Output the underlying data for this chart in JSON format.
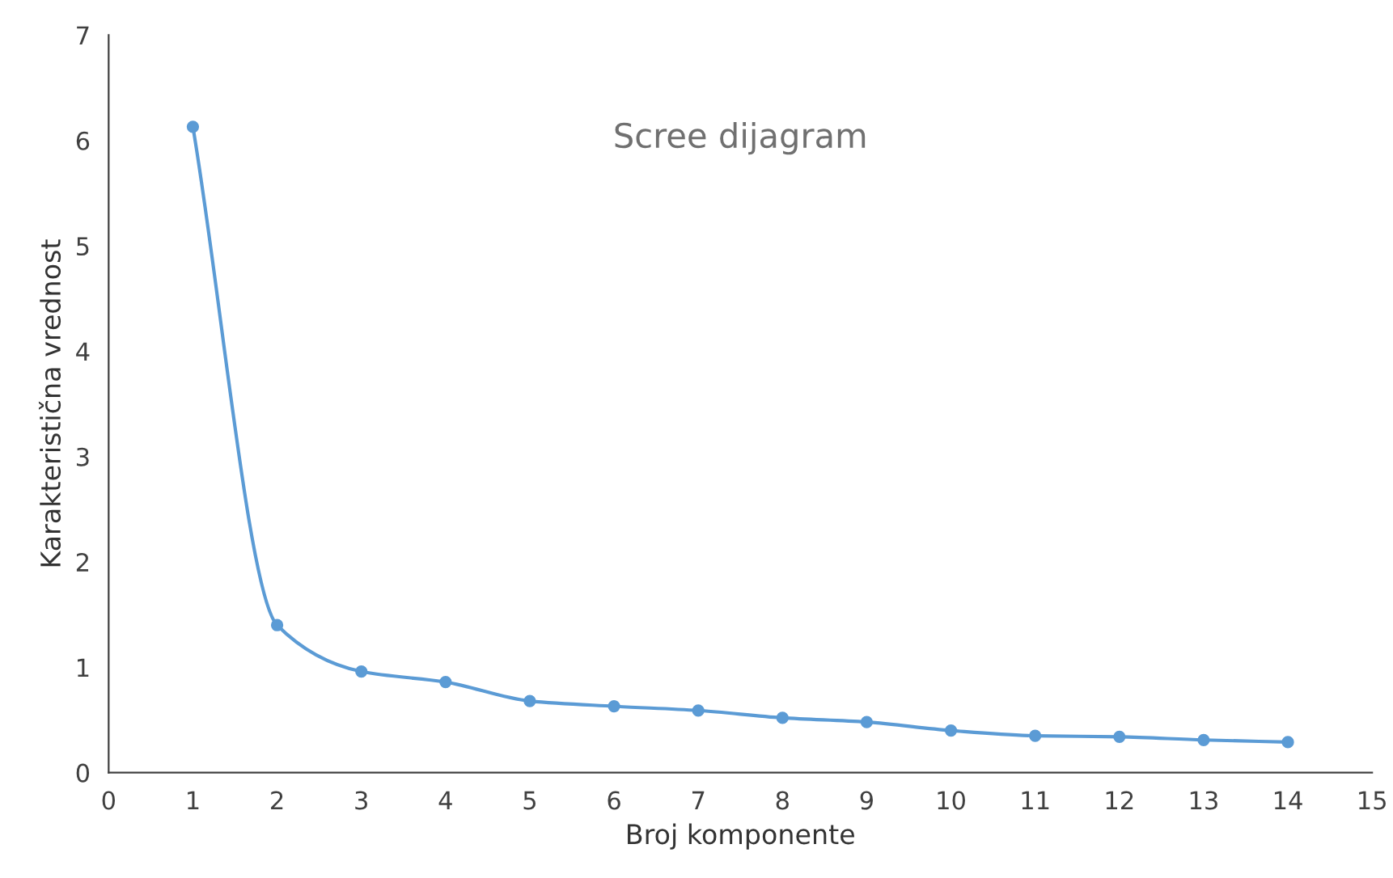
{
  "chart_data": {
    "type": "line",
    "title": "Scree dijagram",
    "xlabel": "Broj komponente",
    "ylabel": "Karakteristična vrednost",
    "x": [
      1,
      2,
      3,
      4,
      5,
      6,
      7,
      8,
      9,
      10,
      11,
      12,
      13,
      14
    ],
    "series": [
      {
        "color": "#5b9bd5",
        "values": [
          6.13,
          1.4,
          0.96,
          0.86,
          0.68,
          0.63,
          0.59,
          0.52,
          0.48,
          0.4,
          0.35,
          0.34,
          0.31,
          0.29
        ]
      }
    ],
    "xlim": [
      0,
      15
    ],
    "xticks": [
      0,
      1,
      2,
      3,
      4,
      5,
      6,
      7,
      8,
      9,
      10,
      11,
      12,
      13,
      14,
      15
    ],
    "ylim": [
      0,
      7
    ],
    "yticks": [
      0,
      1,
      2,
      3,
      4,
      5,
      6,
      7
    ],
    "grid": false,
    "legend": false,
    "marker": "circle",
    "line_style": "solid"
  }
}
